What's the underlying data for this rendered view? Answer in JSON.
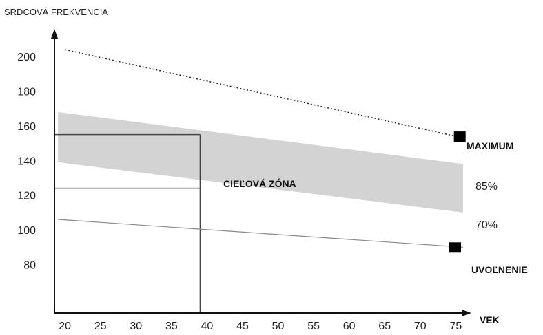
{
  "chart_data": {
    "type": "area",
    "title": "",
    "ylabel": "SRDCOVÁ FREKVENCIA",
    "xlabel": "VEK",
    "xlim": [
      19.5,
      77
    ],
    "ylim": [
      52,
      212
    ],
    "x_ticks": [
      20,
      25,
      30,
      35,
      40,
      45,
      50,
      55,
      60,
      65,
      70,
      75
    ],
    "y_ticks": [
      80,
      100,
      120,
      140,
      160,
      180,
      200
    ],
    "maximum_line": {
      "x": [
        21,
        76
      ],
      "y": [
        204,
        154
      ]
    },
    "target_zone": {
      "x": [
        20,
        77
      ],
      "upper": [
        168,
        138
      ],
      "lower": [
        139,
        110
      ]
    },
    "rest_line": {
      "x": [
        20,
        77
      ],
      "y": [
        106,
        90
      ]
    },
    "example": {
      "age": 40,
      "y_high": 155,
      "y_low": 124
    },
    "labels": {
      "zone": "CIEĽOVÁ ZÓNA",
      "maximum": "MAXIMUM",
      "pct85": "85%",
      "pct70": "70%",
      "rest": "UVOĽNENIE"
    }
  }
}
